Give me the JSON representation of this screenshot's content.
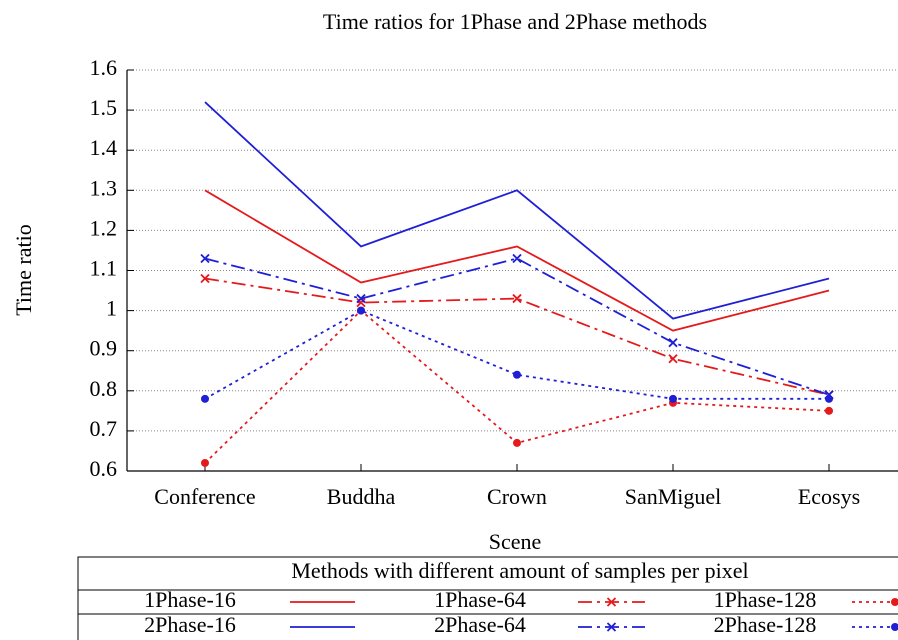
{
  "chart_data": {
    "type": "line",
    "title": "Time ratios for 1Phase and 2Phase methods",
    "x_label": "Scene",
    "y_label": "Time ratio",
    "categories": [
      "Conference",
      "Buddha",
      "Crown",
      "SanMiguel",
      "Ecosys"
    ],
    "ylim": [
      0.6,
      1.6
    ],
    "yticks": [
      0.6,
      0.7,
      0.8,
      0.9,
      1,
      1.1,
      1.2,
      1.3,
      1.4,
      1.5,
      1.6
    ],
    "grid": true,
    "legend_title": "Methods with different amount of samples per pixel",
    "legend_position": "below",
    "series": [
      {
        "name": "1Phase-16",
        "color": "#e41a1c",
        "linestyle": "solid",
        "marker": "none",
        "values": [
          1.3,
          1.07,
          1.16,
          0.95,
          1.05
        ]
      },
      {
        "name": "2Phase-16",
        "color": "#1f1fd6",
        "linestyle": "solid",
        "marker": "none",
        "values": [
          1.52,
          1.16,
          1.3,
          0.98,
          1.08
        ]
      },
      {
        "name": "1Phase-64",
        "color": "#e41a1c",
        "linestyle": "dashdot",
        "marker": "x",
        "values": [
          1.08,
          1.02,
          1.03,
          0.88,
          0.79
        ]
      },
      {
        "name": "2Phase-64",
        "color": "#1f1fd6",
        "linestyle": "dashdot",
        "marker": "x",
        "values": [
          1.13,
          1.03,
          1.13,
          0.92,
          0.79
        ]
      },
      {
        "name": "1Phase-128",
        "color": "#e41a1c",
        "linestyle": "dotted",
        "marker": "dot",
        "values": [
          0.62,
          1.0,
          0.67,
          0.77,
          0.75
        ]
      },
      {
        "name": "2Phase-128",
        "color": "#1f1fd6",
        "linestyle": "dotted",
        "marker": "dot",
        "values": [
          0.78,
          1.0,
          0.84,
          0.78,
          0.78
        ]
      }
    ]
  }
}
